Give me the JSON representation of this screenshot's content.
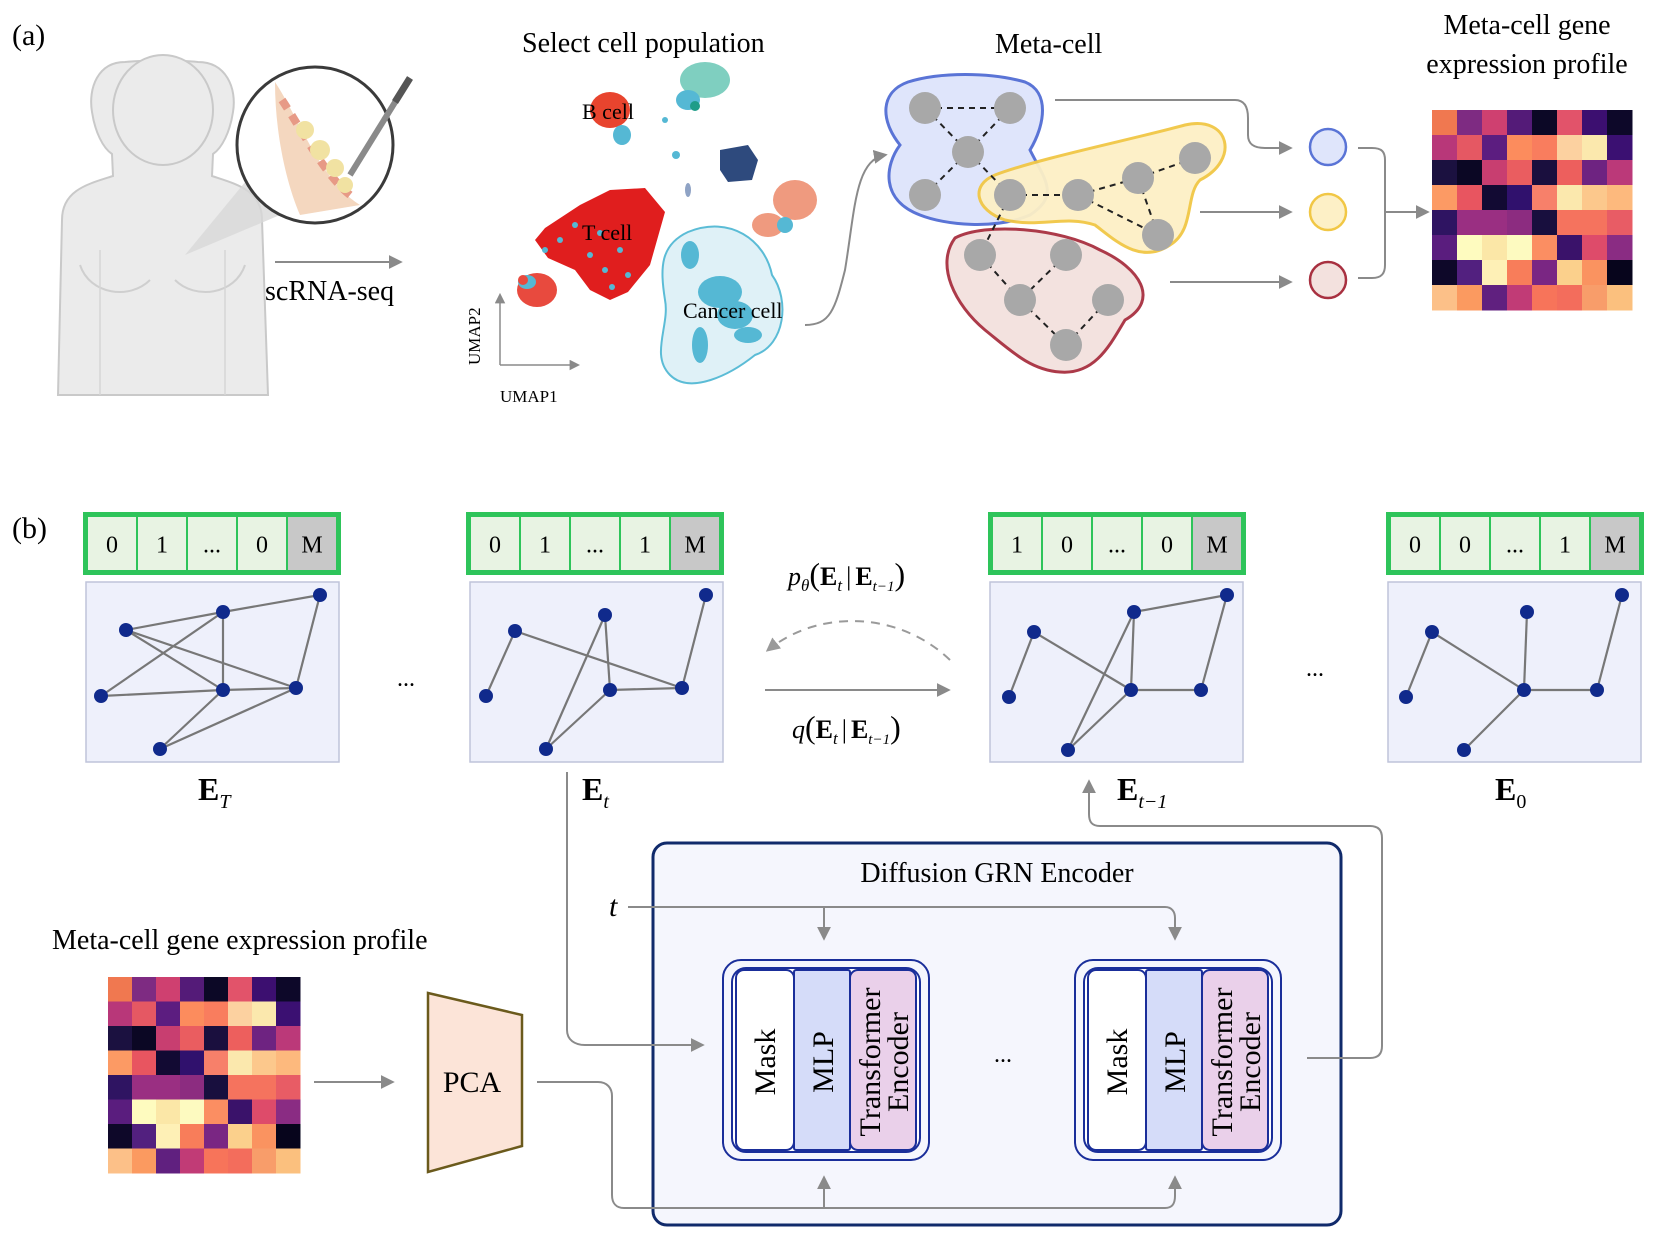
{
  "panel_a": {
    "label": "(a)",
    "arrow_label": "scRNA-seq",
    "umap": {
      "title": "Select cell population",
      "x_axis": "UMAP1",
      "y_axis": "UMAP2",
      "clusters": {
        "b_cell": "B cell",
        "t_cell": "T cell",
        "cancer_cell": "Cancer cell"
      },
      "colors": {
        "t_cell": "#e01e1e",
        "cancer_outline": "#5bbcd6",
        "cancer_fill": "#dff1f7",
        "cyan": "#55b8d4",
        "navy": "#2e4a7d",
        "salmon": "#ef9a7f",
        "teal": "#7fcfc0"
      }
    },
    "metacell": {
      "title": "Meta-cell",
      "colors": {
        "blue_fill": "#dfe5fb",
        "blue_stroke": "#5a74d6",
        "yellow_fill": "#fdf0c6",
        "yellow_stroke": "#f1c745",
        "red_fill": "#f3e1de",
        "red_stroke": "#a83040",
        "node": "#a8a8a8"
      }
    },
    "profile_title_line1": "Meta-cell gene",
    "profile_title_line2": "expression profile",
    "heatmap": [
      [
        "#f07850",
        "#7e2b82",
        "#cf4070",
        "#541b78",
        "#0c0826",
        "#e2536a",
        "#3c0f70",
        "#0d0829"
      ],
      [
        "#b83779",
        "#e55863",
        "#5c1d80",
        "#fc8c5d",
        "#f97d5e",
        "#fcd1a0",
        "#fbe8ad",
        "#3b1072"
      ],
      [
        "#1b1140",
        "#0b0724",
        "#c83e70",
        "#ea5d60",
        "#1a0f3e",
        "#ed5f5d",
        "#6e2381",
        "#bb3979"
      ],
      [
        "#fc9a64",
        "#e85560",
        "#120a33",
        "#30116d",
        "#f7806a",
        "#fbe8ad",
        "#fcc88c",
        "#fdb97d"
      ],
      [
        "#2f1462",
        "#9a2f82",
        "#9a2f82",
        "#8c2c80",
        "#180f3e",
        "#f5735e",
        "#f5735e",
        "#e85c65"
      ],
      [
        "#5a1d7e",
        "#fefbbf",
        "#fbe7a7",
        "#fdfac0",
        "#fb8e62",
        "#3a126a",
        "#de4b6a",
        "#8a2c83"
      ],
      [
        "#0e0829",
        "#52207f",
        "#fef0b6",
        "#f87d5a",
        "#7a2683",
        "#fbd08c",
        "#fa9360",
        "#07051c"
      ],
      [
        "#fcc088",
        "#fb9a60",
        "#60207f",
        "#c13b76",
        "#f7745a",
        "#f36d5c",
        "#f89d6a",
        "#fbc07e"
      ]
    ]
  },
  "panel_b": {
    "label": "(b)",
    "masks": [
      [
        "0",
        "1",
        "...",
        "0",
        "M"
      ],
      [
        "0",
        "1",
        "...",
        "1",
        "M"
      ],
      [
        "1",
        "0",
        "...",
        "0",
        "M"
      ],
      [
        "0",
        "0",
        "...",
        "1",
        "M"
      ]
    ],
    "graph_labels": [
      {
        "main": "E",
        "sub": "T"
      },
      {
        "main": "E",
        "sub": "t"
      },
      {
        "main": "E",
        "sub": "t−1"
      },
      {
        "main": "E",
        "sub": "0"
      }
    ],
    "ellipsis": "...",
    "reverse_process": {
      "p": "p",
      "theta": "θ",
      "left": "(",
      "E1": "E",
      "sub1": "t",
      "bar": "|",
      "E2": "E",
      "sub2": "t−1",
      "right": ")"
    },
    "forward_process": {
      "q": "q",
      "left": "(",
      "E1": "E",
      "sub1": "t",
      "bar": "|",
      "E2": "E",
      "sub2": "t−1",
      "right": ")"
    },
    "encoder": {
      "title": "Diffusion GRN Encoder",
      "time_symbol": "t",
      "mask": "Mask",
      "mlp": "MLP",
      "transformer_line1": "Transformer",
      "transformer_line2": "Encoder"
    },
    "profile_title": "Meta-cell gene expression profile",
    "pca": "PCA",
    "colors": {
      "mask_border": "#2ec45a",
      "mask_cell": "#e8f3e3",
      "m_cell": "#c8c8c8",
      "graph_bg": "#eef0fb",
      "graph_border": "#bfc4da",
      "node": "#102a8c",
      "edge": "#777777",
      "encoder_border": "#102a6b",
      "encoder_bg": "#f5f6fd",
      "mlp_fill": "#d5dcf9",
      "tf_fill": "#ead0ea",
      "pca_fill": "#fce4d8",
      "pca_stroke": "#6b5a1c"
    }
  }
}
